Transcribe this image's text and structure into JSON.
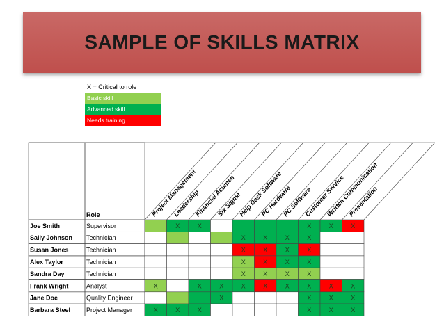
{
  "title": "SAMPLE OF SKILLS MATRIX",
  "legend": {
    "title": "X = Critical to role",
    "items": [
      {
        "label": "Basic skill",
        "color": "#92d050"
      },
      {
        "label": "Advanced skill",
        "color": "#00b050"
      },
      {
        "label": "Needs training",
        "color": "#ff0000"
      }
    ]
  },
  "matrix": {
    "role_header": "Role",
    "skills": [
      "Project Management",
      "Leadership",
      "Financial Acumen",
      "Six Sigma",
      "Help Desk Software",
      "PC Hardware",
      "PC Software",
      "Customer Service",
      "Written Communication",
      "Presentation"
    ],
    "level_colors": {
      "B": "#92d050",
      "A": "#00b050",
      "N": "#ff0000",
      "": "#ffffff"
    },
    "rows": [
      {
        "name": "Joe Smith",
        "role": "Supervisor",
        "levels": [
          "B",
          "A",
          "A",
          "",
          "A",
          "A",
          "A",
          "A",
          "A",
          "N"
        ],
        "critical": [
          false,
          true,
          true,
          false,
          false,
          false,
          false,
          true,
          true,
          true
        ]
      },
      {
        "name": "Sally Johnson",
        "role": "Technician",
        "levels": [
          "",
          "B",
          "",
          "B",
          "A",
          "A",
          "A",
          "A",
          "",
          ""
        ],
        "critical": [
          false,
          false,
          false,
          false,
          true,
          true,
          true,
          true,
          false,
          false
        ]
      },
      {
        "name": "Susan Jones",
        "role": "Technician",
        "levels": [
          "",
          "",
          "",
          "",
          "N",
          "N",
          "A",
          "N",
          "",
          ""
        ],
        "critical": [
          false,
          false,
          false,
          false,
          true,
          true,
          true,
          true,
          false,
          false
        ]
      },
      {
        "name": "Alex Taylor",
        "role": "Technician",
        "levels": [
          "",
          "",
          "",
          "",
          "B",
          "N",
          "A",
          "A",
          "",
          ""
        ],
        "critical": [
          false,
          false,
          false,
          false,
          true,
          true,
          true,
          true,
          false,
          false
        ]
      },
      {
        "name": "Sandra Day",
        "role": "Technician",
        "levels": [
          "",
          "",
          "",
          "",
          "B",
          "B",
          "B",
          "B",
          "",
          ""
        ],
        "critical": [
          false,
          false,
          false,
          false,
          true,
          true,
          true,
          true,
          false,
          false
        ]
      },
      {
        "name": "Frank Wright",
        "role": "Analyst",
        "levels": [
          "B",
          "",
          "A",
          "A",
          "A",
          "N",
          "A",
          "A",
          "N",
          "A"
        ],
        "critical": [
          true,
          false,
          true,
          true,
          true,
          true,
          true,
          true,
          true,
          true
        ]
      },
      {
        "name": "Jane Doe",
        "role": "Quality Engineer",
        "levels": [
          "",
          "B",
          "A",
          "A",
          "",
          "",
          "",
          "A",
          "A",
          "A"
        ],
        "critical": [
          false,
          false,
          false,
          true,
          false,
          false,
          false,
          true,
          true,
          true
        ]
      },
      {
        "name": "Barbara Steel",
        "role": "Project Manager",
        "levels": [
          "A",
          "A",
          "A",
          "",
          "",
          "",
          "",
          "A",
          "A",
          "A"
        ],
        "critical": [
          true,
          true,
          true,
          false,
          false,
          false,
          false,
          true,
          true,
          true
        ]
      }
    ]
  }
}
